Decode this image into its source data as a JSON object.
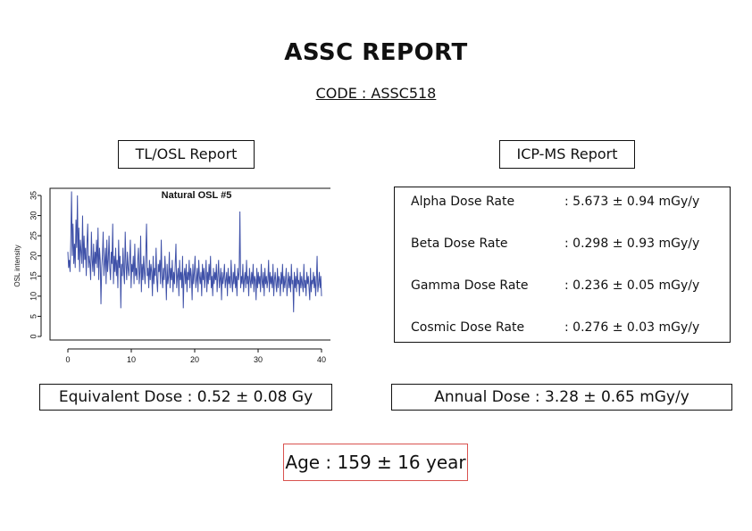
{
  "header": {
    "title": "ASSC REPORT",
    "code": "CODE : ASSC518"
  },
  "sections": {
    "tlosl_label": "TL/OSL Report",
    "icpms_label": "ICP-MS Report"
  },
  "icpms": {
    "rows": [
      {
        "name": "Alpha Dose Rate",
        "value": ": 5.673 ± 0.94 mGy/y"
      },
      {
        "name": "Beta Dose Rate",
        "value": ": 0.298 ± 0.93 mGy/y"
      },
      {
        "name": "Gamma Dose Rate",
        "value": ": 0.236 ± 0.05 mGy/y"
      },
      {
        "name": "Cosmic Dose Rate",
        "value": ": 0.276 ± 0.03 mGy/y"
      }
    ]
  },
  "results": {
    "equivalent_dose": "Equivalent Dose : 0.52 ± 0.08 Gy",
    "annual_dose": "Annual Dose : 3.28 ± 0.65 mGy/y",
    "age": "Age : 159 ± 16 year"
  },
  "colors": {
    "series": "#3f51a8",
    "age_border": "#d9534f"
  },
  "chart_data": {
    "type": "line",
    "title": "Natural OSL #5",
    "xlabel": "",
    "ylabel": "OSL intensity",
    "xlim": [
      0,
      40
    ],
    "ylim": [
      0,
      35
    ],
    "x_ticks": [
      "0",
      "10",
      "20",
      "30",
      "40"
    ],
    "y_ticks": [
      "0",
      "5",
      "10",
      "15",
      "20",
      "25",
      "30",
      "35"
    ],
    "series": [
      {
        "values": [
          21,
          17,
          19,
          16,
          24,
          36,
          20,
          28,
          18,
          23,
          17,
          29,
          22,
          35,
          19,
          27,
          16,
          24,
          21,
          18,
          30,
          17,
          25,
          19,
          22,
          15,
          23,
          28,
          17,
          20,
          18,
          14,
          26,
          19,
          16,
          23,
          15,
          21,
          18,
          24,
          17,
          27,
          14,
          22,
          19,
          8,
          17,
          20,
          26,
          15,
          18,
          22,
          13,
          24,
          16,
          19,
          25,
          17,
          14,
          21,
          18,
          28,
          13,
          20,
          16,
          22,
          15,
          19,
          12,
          24,
          17,
          20,
          7,
          18,
          15,
          22,
          16,
          13,
          26,
          18,
          14,
          21,
          17,
          15,
          19,
          24,
          12,
          18,
          16,
          20,
          13,
          23,
          15,
          17,
          14,
          19,
          22,
          13,
          16,
          25,
          11,
          18,
          14,
          20,
          16,
          13,
          21,
          28,
          15,
          17,
          12,
          19,
          14,
          18,
          16,
          10,
          20,
          13,
          17,
          15,
          22,
          14,
          11,
          18,
          16,
          19,
          13,
          24,
          15,
          12,
          17,
          14,
          20,
          16,
          9,
          18,
          13,
          15,
          21,
          12,
          17,
          14,
          19,
          11,
          16,
          13,
          18,
          23,
          12,
          15,
          17,
          10,
          19,
          14,
          16,
          12,
          20,
          7,
          15,
          17,
          13,
          18,
          11,
          16,
          14,
          19,
          12,
          17,
          15,
          9,
          18,
          13,
          16,
          20,
          12,
          14,
          17,
          11,
          19,
          15,
          13,
          16,
          10,
          18,
          14,
          17,
          12,
          15,
          19,
          11,
          16,
          13,
          18,
          14,
          20,
          12,
          15,
          10,
          17,
          13,
          16,
          14,
          18,
          11,
          15,
          19,
          12,
          14,
          17,
          9,
          16,
          13,
          15,
          18,
          12,
          14,
          16,
          10,
          17,
          13,
          15,
          12,
          19,
          14,
          11,
          16,
          13,
          18,
          12,
          15,
          10,
          17,
          14,
          16,
          31,
          12,
          15,
          13,
          18,
          11,
          14,
          16,
          12,
          19,
          13,
          15,
          10,
          17,
          14,
          12,
          16,
          13,
          18,
          11,
          15,
          14,
          9,
          17,
          12,
          16,
          13,
          15,
          11,
          18,
          14,
          12,
          16,
          10,
          17,
          13,
          15,
          12,
          14,
          19,
          11,
          16,
          13,
          15,
          12,
          18,
          10,
          14,
          16,
          13,
          11,
          17,
          12,
          15,
          14,
          10,
          16,
          13,
          18,
          11,
          15,
          12,
          14,
          17,
          10,
          13,
          16,
          12,
          15,
          11,
          18,
          13,
          14,
          6,
          16,
          12,
          15,
          11,
          17,
          13,
          14,
          10,
          16,
          12,
          15,
          13,
          11,
          18,
          12,
          14,
          10,
          16,
          13,
          15,
          12,
          9,
          17,
          11,
          14,
          13,
          16,
          12,
          15,
          10,
          14,
          20,
          11,
          13,
          16,
          12,
          15,
          10
        ]
      }
    ]
  }
}
